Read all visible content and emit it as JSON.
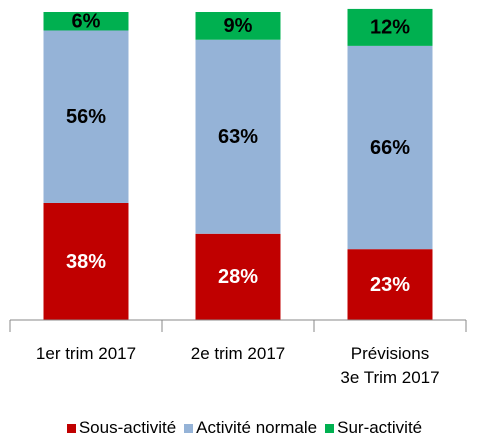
{
  "chart_data": {
    "type": "stacked_bar",
    "categories": [
      "1er trim 2017",
      "2e trim 2017",
      "Prévisions\n3e Trim  2017"
    ],
    "series": [
      {
        "name": "Sous-activité",
        "color": "#c00000",
        "values": [
          38,
          28,
          23
        ],
        "value_labels": [
          "38%",
          "28%",
          "23%"
        ],
        "label_color": "#ffffff"
      },
      {
        "name": "Activité normale",
        "color": "#95b3d7",
        "values": [
          56,
          63,
          66
        ],
        "value_labels": [
          "56%",
          "63%",
          "66%"
        ],
        "label_color": "#000000"
      },
      {
        "name": "Sur-activité",
        "color": "#00b050",
        "values": [
          6,
          9,
          12
        ],
        "value_labels": [
          "6%",
          "9%",
          "12%"
        ],
        "label_color": "#000000"
      }
    ],
    "ylim": [
      0,
      100
    ],
    "legend": "bottom"
  }
}
